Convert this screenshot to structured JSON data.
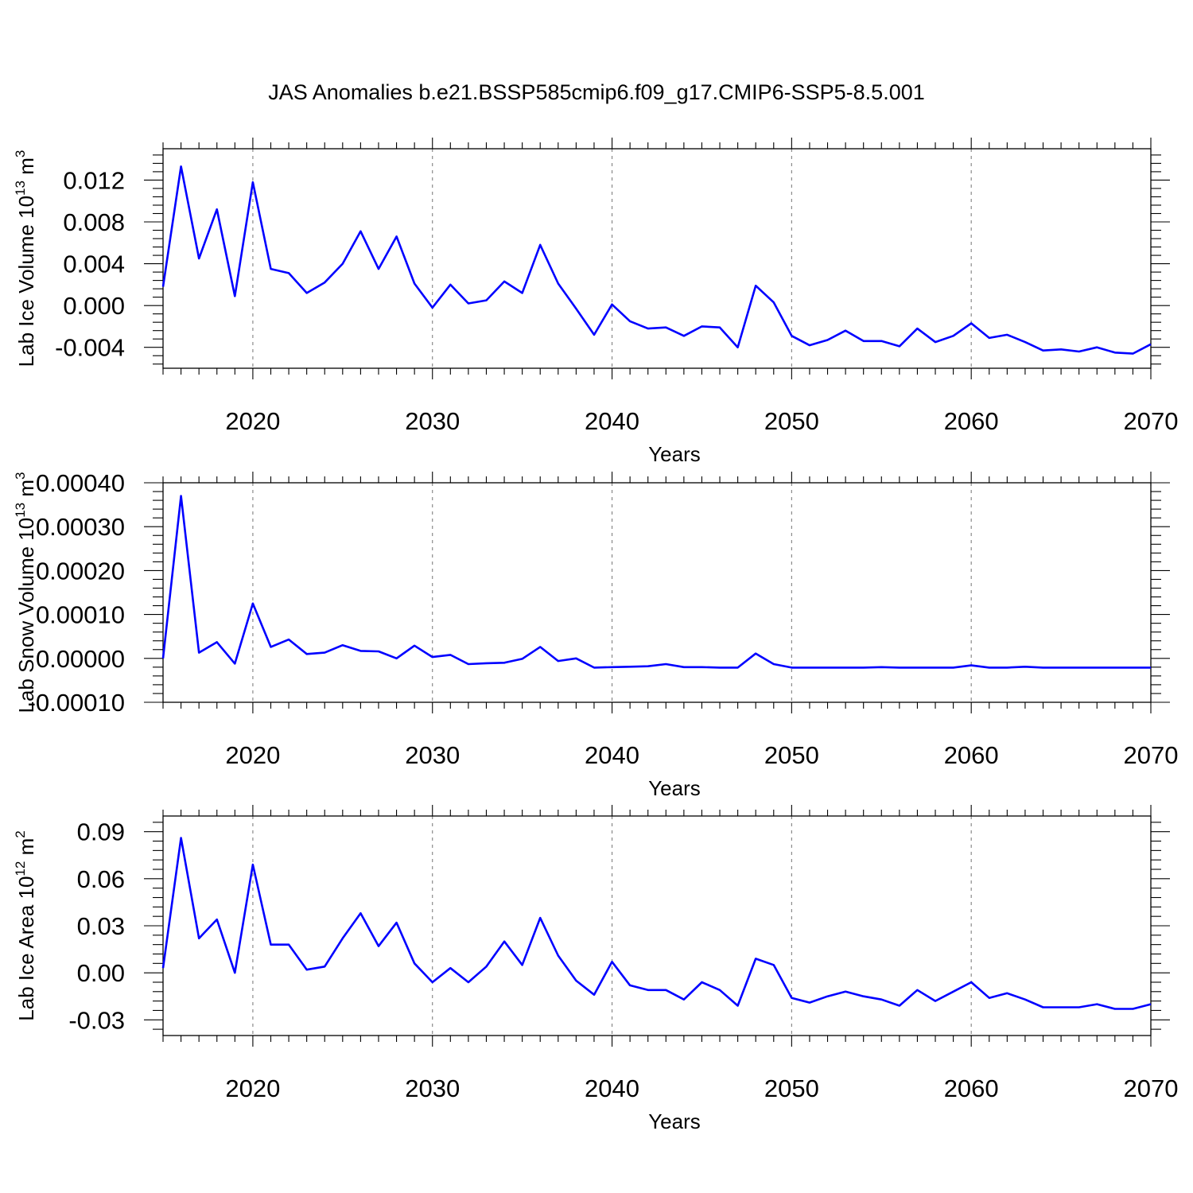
{
  "title": "JAS Anomalies b.e21.BSSP585cmip6.f09_g17.CMIP6-SSP5-8.5.001",
  "colors": {
    "series": "#0000ff",
    "grid": "#808080",
    "axis": "#000000"
  },
  "chart_data": [
    {
      "type": "line",
      "id": "ice-volume",
      "ylabel": {
        "text": "Lab Ice Volume 10",
        "sup": "13",
        "unit": " m",
        "unit_sup": "3"
      },
      "xlabel": "Years",
      "xlim": [
        2015,
        2070
      ],
      "ylim": [
        -0.006,
        0.015
      ],
      "x_ticks": [
        2020,
        2030,
        2040,
        2050,
        2060,
        2070
      ],
      "y_ticks": [
        0.012,
        0.008,
        0.004,
        0.0,
        -0.004
      ],
      "y_tick_labels": [
        "0.012",
        "0.008",
        "0.004",
        "0.000",
        "-0.004"
      ],
      "grid": "vertical dashed at major x ticks",
      "x": [
        2015,
        2016,
        2017,
        2018,
        2019,
        2020,
        2021,
        2022,
        2023,
        2024,
        2025,
        2026,
        2027,
        2028,
        2029,
        2030,
        2031,
        2032,
        2033,
        2034,
        2035,
        2036,
        2037,
        2038,
        2039,
        2040,
        2041,
        2042,
        2043,
        2044,
        2045,
        2046,
        2047,
        2048,
        2049,
        2050,
        2051,
        2052,
        2053,
        2054,
        2055,
        2056,
        2057,
        2058,
        2059,
        2060,
        2061,
        2062,
        2063,
        2064,
        2065,
        2066,
        2067,
        2068,
        2069,
        2070
      ],
      "y": [
        0.0018,
        0.0133,
        0.0045,
        0.0092,
        0.0009,
        0.0118,
        0.0035,
        0.0031,
        0.0012,
        0.0022,
        0.004,
        0.0071,
        0.0035,
        0.0066,
        0.0021,
        -0.0002,
        0.002,
        0.0002,
        0.0005,
        0.0023,
        0.0012,
        0.0058,
        0.0021,
        -0.0003,
        -0.0028,
        0.0001,
        -0.0015,
        -0.0022,
        -0.0021,
        -0.0029,
        -0.002,
        -0.0021,
        -0.004,
        0.0019,
        0.0003,
        -0.0029,
        -0.0038,
        -0.0033,
        -0.0024,
        -0.0034,
        -0.0034,
        -0.0039,
        -0.0022,
        -0.0035,
        -0.0029,
        -0.0017,
        -0.0031,
        -0.0028,
        -0.0035,
        -0.0043,
        -0.0042,
        -0.0044,
        -0.004,
        -0.0045,
        -0.0046,
        -0.0037
      ]
    },
    {
      "type": "line",
      "id": "snow-volume",
      "ylabel": {
        "text": "Lab Snow Volume 10",
        "sup": "13",
        "unit": " m",
        "unit_sup": "3"
      },
      "xlabel": "Years",
      "xlim": [
        2015,
        2070
      ],
      "ylim": [
        -0.0001,
        0.0004
      ],
      "x_ticks": [
        2020,
        2030,
        2040,
        2050,
        2060,
        2070
      ],
      "y_ticks": [
        0.0004,
        0.0003,
        0.0002,
        0.0001,
        0.0,
        -0.0001
      ],
      "y_tick_labels": [
        "0.00040",
        "0.00030",
        "0.00020",
        "0.00010",
        "0.00000",
        "-0.00010"
      ],
      "grid": "vertical dashed at major x ticks",
      "x": [
        2015,
        2016,
        2017,
        2018,
        2019,
        2020,
        2021,
        2022,
        2023,
        2024,
        2025,
        2026,
        2027,
        2028,
        2029,
        2030,
        2031,
        2032,
        2033,
        2034,
        2035,
        2036,
        2037,
        2038,
        2039,
        2040,
        2041,
        2042,
        2043,
        2044,
        2045,
        2046,
        2047,
        2048,
        2049,
        2050,
        2051,
        2052,
        2053,
        2054,
        2055,
        2056,
        2057,
        2058,
        2059,
        2060,
        2061,
        2062,
        2063,
        2064,
        2065,
        2066,
        2067,
        2068,
        2069,
        2070
      ],
      "y": [
        0.0,
        0.00037,
        1.3e-05,
        3.7e-05,
        -1.2e-05,
        0.000125,
        2.6e-05,
        4.3e-05,
        1e-05,
        1.3e-05,
        3e-05,
        1.7e-05,
        1.6e-05,
        0.0,
        2.9e-05,
        3e-06,
        8e-06,
        -1.3e-05,
        -1.1e-05,
        -1e-05,
        -1e-06,
        2.6e-05,
        -6e-06,
        0.0,
        -2.1e-05,
        -2e-05,
        -1.9e-05,
        -1.8e-05,
        -1.3e-05,
        -2e-05,
        -2e-05,
        -2.1e-05,
        -2.1e-05,
        1.1e-05,
        -1.3e-05,
        -2.1e-05,
        -2.1e-05,
        -2.1e-05,
        -2.1e-05,
        -2.1e-05,
        -2e-05,
        -2.1e-05,
        -2.1e-05,
        -2.1e-05,
        -2.1e-05,
        -1.6e-05,
        -2.1e-05,
        -2.1e-05,
        -1.9e-05,
        -2.1e-05,
        -2.1e-05,
        -2.1e-05,
        -2.1e-05,
        -2.1e-05,
        -2.1e-05,
        -2.1e-05
      ]
    },
    {
      "type": "line",
      "id": "ice-area",
      "ylabel": {
        "text": "Lab Ice Area 10",
        "sup": "12",
        "unit": " m",
        "unit_sup": "2"
      },
      "xlabel": "Years",
      "xlim": [
        2015,
        2070
      ],
      "ylim": [
        -0.04,
        0.1
      ],
      "x_ticks": [
        2020,
        2030,
        2040,
        2050,
        2060,
        2070
      ],
      "y_ticks": [
        0.09,
        0.06,
        0.03,
        0.0,
        -0.03
      ],
      "y_tick_labels": [
        "0.09",
        "0.06",
        "0.03",
        "0.00",
        "-0.03"
      ],
      "grid": "vertical dashed at major x ticks",
      "x": [
        2015,
        2016,
        2017,
        2018,
        2019,
        2020,
        2021,
        2022,
        2023,
        2024,
        2025,
        2026,
        2027,
        2028,
        2029,
        2030,
        2031,
        2032,
        2033,
        2034,
        2035,
        2036,
        2037,
        2038,
        2039,
        2040,
        2041,
        2042,
        2043,
        2044,
        2045,
        2046,
        2047,
        2048,
        2049,
        2050,
        2051,
        2052,
        2053,
        2054,
        2055,
        2056,
        2057,
        2058,
        2059,
        2060,
        2061,
        2062,
        2063,
        2064,
        2065,
        2066,
        2067,
        2068,
        2069,
        2070
      ],
      "y": [
        0.003,
        0.086,
        0.022,
        0.034,
        0.0,
        0.069,
        0.018,
        0.018,
        0.002,
        0.004,
        0.022,
        0.038,
        0.017,
        0.032,
        0.006,
        -0.006,
        0.003,
        -0.006,
        0.004,
        0.02,
        0.005,
        0.035,
        0.011,
        -0.005,
        -0.014,
        0.007,
        -0.008,
        -0.011,
        -0.011,
        -0.017,
        -0.006,
        -0.011,
        -0.021,
        0.009,
        0.005,
        -0.016,
        -0.019,
        -0.015,
        -0.012,
        -0.015,
        -0.017,
        -0.021,
        -0.011,
        -0.018,
        -0.012,
        -0.006,
        -0.016,
        -0.013,
        -0.017,
        -0.022,
        -0.022,
        -0.022,
        -0.02,
        -0.023,
        -0.023,
        -0.02
      ]
    }
  ]
}
